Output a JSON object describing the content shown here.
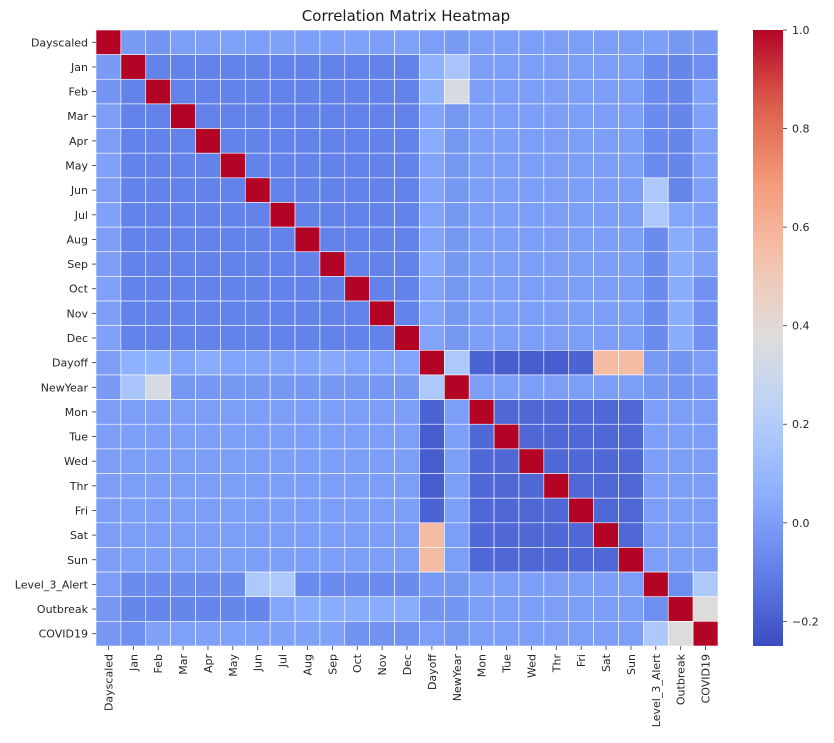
{
  "chart_data": {
    "type": "heatmap",
    "title": "Correlation Matrix Heatmap",
    "xlabel": "",
    "ylabel": "",
    "labels": [
      "Dayscaled",
      "Jan",
      "Feb",
      "Mar",
      "Apr",
      "May",
      "Jun",
      "Jul",
      "Aug",
      "Sep",
      "Oct",
      "Nov",
      "Dec",
      "Dayoff",
      "NewYear",
      "Mon",
      "Tue",
      "Wed",
      "Thr",
      "Fri",
      "Sat",
      "Sun",
      "Level_3_Alert",
      "Outbreak",
      "COVID19"
    ],
    "colormap": "coolwarm",
    "vmin": -0.25,
    "vmax": 1.0,
    "colorbar_ticks": [
      "1.0",
      "0.8",
      "0.6",
      "0.4",
      "0.2",
      "0.0",
      "−0.2"
    ],
    "colorbar_tick_values": [
      1.0,
      0.8,
      0.6,
      0.4,
      0.2,
      0.0,
      -0.2
    ],
    "grid": true,
    "matrix": [
      [
        1.0,
        -0.01,
        -0.03,
        0.0,
        0.0,
        0.01,
        0.0,
        0.01,
        0.0,
        0.0,
        0.01,
        0.0,
        0.01,
        0.0,
        -0.01,
        0.0,
        0.0,
        0.0,
        0.0,
        0.0,
        0.0,
        0.0,
        0.0,
        -0.02,
        -0.02
      ],
      [
        -0.01,
        1.0,
        -0.09,
        -0.09,
        -0.09,
        -0.09,
        -0.09,
        -0.09,
        -0.09,
        -0.09,
        -0.09,
        -0.09,
        -0.09,
        0.07,
        0.16,
        0.0,
        0.0,
        0.0,
        0.0,
        0.0,
        0.0,
        0.0,
        -0.06,
        -0.08,
        -0.05
      ],
      [
        -0.03,
        -0.09,
        1.0,
        -0.09,
        -0.09,
        -0.09,
        -0.09,
        -0.09,
        -0.09,
        -0.09,
        -0.09,
        -0.09,
        -0.09,
        0.07,
        0.34,
        0.0,
        0.0,
        0.0,
        0.0,
        0.0,
        0.0,
        0.0,
        -0.06,
        -0.08,
        0.01
      ],
      [
        0.0,
        -0.09,
        -0.09,
        1.0,
        -0.09,
        -0.09,
        -0.09,
        -0.09,
        -0.09,
        -0.09,
        -0.09,
        -0.09,
        -0.09,
        0.02,
        -0.02,
        0.0,
        0.0,
        0.0,
        0.0,
        0.0,
        0.0,
        0.0,
        -0.06,
        -0.08,
        0.01
      ],
      [
        0.0,
        -0.09,
        -0.09,
        -0.09,
        1.0,
        -0.09,
        -0.09,
        -0.09,
        -0.09,
        -0.09,
        -0.09,
        -0.09,
        -0.09,
        0.05,
        -0.02,
        0.0,
        0.0,
        0.0,
        0.0,
        0.0,
        0.0,
        0.0,
        -0.06,
        -0.08,
        0.01
      ],
      [
        0.01,
        -0.09,
        -0.09,
        -0.09,
        -0.09,
        1.0,
        -0.09,
        -0.09,
        -0.09,
        -0.09,
        -0.09,
        -0.09,
        -0.09,
        0.02,
        -0.02,
        0.0,
        0.0,
        0.0,
        0.0,
        0.0,
        0.0,
        0.0,
        -0.06,
        -0.08,
        0.01
      ],
      [
        0.0,
        -0.09,
        -0.09,
        -0.09,
        -0.09,
        -0.09,
        1.0,
        -0.09,
        -0.09,
        -0.09,
        -0.09,
        -0.09,
        -0.09,
        0.02,
        -0.02,
        0.0,
        0.0,
        0.0,
        0.0,
        0.0,
        0.0,
        0.0,
        0.18,
        -0.08,
        0.01
      ],
      [
        0.01,
        -0.09,
        -0.09,
        -0.09,
        -0.09,
        -0.09,
        -0.09,
        1.0,
        -0.09,
        -0.09,
        -0.09,
        -0.09,
        -0.09,
        0.02,
        -0.02,
        0.0,
        0.0,
        0.0,
        0.0,
        0.0,
        0.0,
        0.0,
        0.18,
        0.03,
        0.01
      ],
      [
        0.0,
        -0.09,
        -0.09,
        -0.09,
        -0.09,
        -0.09,
        -0.09,
        -0.09,
        1.0,
        -0.09,
        -0.09,
        -0.09,
        -0.09,
        0.02,
        -0.02,
        0.0,
        0.0,
        0.0,
        0.0,
        0.0,
        0.0,
        0.0,
        -0.06,
        0.05,
        0.01
      ],
      [
        0.0,
        -0.09,
        -0.09,
        -0.09,
        -0.09,
        -0.09,
        -0.09,
        -0.09,
        -0.09,
        1.0,
        -0.09,
        -0.09,
        -0.09,
        0.04,
        -0.02,
        0.0,
        0.0,
        0.0,
        0.0,
        0.0,
        0.0,
        0.0,
        -0.06,
        0.05,
        0.01
      ],
      [
        0.01,
        -0.09,
        -0.09,
        -0.09,
        -0.09,
        -0.09,
        -0.09,
        -0.09,
        -0.09,
        -0.09,
        1.0,
        -0.09,
        -0.09,
        0.02,
        -0.02,
        0.0,
        0.0,
        0.0,
        0.0,
        0.0,
        0.0,
        0.0,
        -0.06,
        0.05,
        -0.04
      ],
      [
        0.0,
        -0.09,
        -0.09,
        -0.09,
        -0.09,
        -0.09,
        -0.09,
        -0.09,
        -0.09,
        -0.09,
        -0.09,
        1.0,
        -0.09,
        0.02,
        -0.02,
        0.0,
        0.0,
        0.0,
        0.0,
        0.0,
        0.0,
        0.0,
        -0.06,
        0.05,
        -0.04
      ],
      [
        0.01,
        -0.09,
        -0.09,
        -0.09,
        -0.09,
        -0.09,
        -0.09,
        -0.09,
        -0.09,
        -0.09,
        -0.09,
        -0.09,
        1.0,
        0.02,
        -0.02,
        0.0,
        0.0,
        0.0,
        0.0,
        0.0,
        0.0,
        0.0,
        -0.06,
        0.05,
        -0.04
      ],
      [
        0.0,
        0.07,
        0.07,
        0.02,
        0.05,
        0.02,
        0.02,
        0.02,
        0.02,
        0.04,
        0.02,
        0.02,
        0.02,
        1.0,
        0.18,
        -0.18,
        -0.2,
        -0.2,
        -0.2,
        -0.18,
        0.56,
        0.56,
        -0.01,
        -0.03,
        0.0
      ],
      [
        -0.01,
        0.16,
        0.34,
        -0.02,
        -0.02,
        -0.02,
        -0.02,
        -0.02,
        -0.02,
        -0.02,
        -0.02,
        -0.02,
        -0.02,
        0.18,
        1.0,
        0.0,
        0.0,
        0.0,
        0.0,
        0.0,
        0.0,
        0.0,
        -0.02,
        -0.03,
        -0.02
      ],
      [
        0.0,
        0.0,
        0.0,
        0.0,
        0.0,
        0.0,
        0.0,
        0.0,
        0.0,
        0.0,
        0.0,
        0.0,
        0.0,
        -0.18,
        0.0,
        1.0,
        -0.17,
        -0.17,
        -0.17,
        -0.17,
        -0.17,
        -0.17,
        0.0,
        0.0,
        0.0
      ],
      [
        0.0,
        0.0,
        0.0,
        0.0,
        0.0,
        0.0,
        0.0,
        0.0,
        0.0,
        0.0,
        0.0,
        0.0,
        0.0,
        -0.2,
        0.0,
        -0.17,
        1.0,
        -0.17,
        -0.17,
        -0.17,
        -0.17,
        -0.17,
        0.0,
        0.0,
        0.0
      ],
      [
        0.0,
        0.0,
        0.0,
        0.0,
        0.0,
        0.0,
        0.0,
        0.0,
        0.0,
        0.0,
        0.0,
        0.0,
        0.0,
        -0.2,
        0.0,
        -0.17,
        -0.17,
        1.0,
        -0.17,
        -0.17,
        -0.17,
        -0.17,
        0.0,
        0.0,
        0.0
      ],
      [
        0.0,
        0.0,
        0.0,
        0.0,
        0.0,
        0.0,
        0.0,
        0.0,
        0.0,
        0.0,
        0.0,
        0.0,
        0.0,
        -0.2,
        0.0,
        -0.17,
        -0.17,
        -0.17,
        1.0,
        -0.17,
        -0.17,
        -0.17,
        0.0,
        0.0,
        0.0
      ],
      [
        0.0,
        0.0,
        0.0,
        0.0,
        0.0,
        0.0,
        0.0,
        0.0,
        0.0,
        0.0,
        0.0,
        0.0,
        0.0,
        -0.18,
        0.0,
        -0.17,
        -0.17,
        -0.17,
        -0.17,
        1.0,
        -0.17,
        -0.17,
        0.0,
        0.0,
        0.0
      ],
      [
        0.0,
        0.0,
        0.0,
        0.0,
        0.0,
        0.0,
        0.0,
        0.0,
        0.0,
        0.0,
        0.0,
        0.0,
        0.0,
        0.56,
        0.0,
        -0.17,
        -0.17,
        -0.17,
        -0.17,
        -0.17,
        1.0,
        -0.17,
        0.0,
        0.0,
        0.0
      ],
      [
        0.0,
        0.0,
        0.0,
        0.0,
        0.0,
        0.0,
        0.0,
        0.0,
        0.0,
        0.0,
        0.0,
        0.0,
        0.0,
        0.56,
        0.0,
        -0.17,
        -0.17,
        -0.17,
        -0.17,
        -0.17,
        -0.17,
        1.0,
        0.0,
        0.0,
        0.0
      ],
      [
        0.0,
        -0.06,
        -0.06,
        -0.06,
        -0.06,
        -0.06,
        0.18,
        0.18,
        -0.06,
        -0.06,
        -0.06,
        -0.06,
        -0.06,
        -0.01,
        -0.02,
        0.0,
        0.0,
        0.0,
        0.0,
        0.0,
        0.0,
        0.0,
        1.0,
        -0.05,
        0.18
      ],
      [
        -0.02,
        -0.08,
        -0.08,
        -0.08,
        -0.08,
        -0.08,
        -0.08,
        0.03,
        0.05,
        0.05,
        0.05,
        0.05,
        0.05,
        -0.03,
        -0.03,
        0.0,
        0.0,
        0.0,
        0.0,
        0.0,
        0.0,
        0.0,
        -0.05,
        1.0,
        0.38
      ],
      [
        -0.02,
        -0.05,
        0.01,
        0.01,
        0.01,
        0.01,
        0.01,
        0.01,
        0.01,
        0.01,
        -0.04,
        -0.04,
        -0.04,
        0.0,
        -0.02,
        0.0,
        0.0,
        0.0,
        0.0,
        0.0,
        0.0,
        0.0,
        0.18,
        0.38,
        1.0
      ]
    ]
  }
}
